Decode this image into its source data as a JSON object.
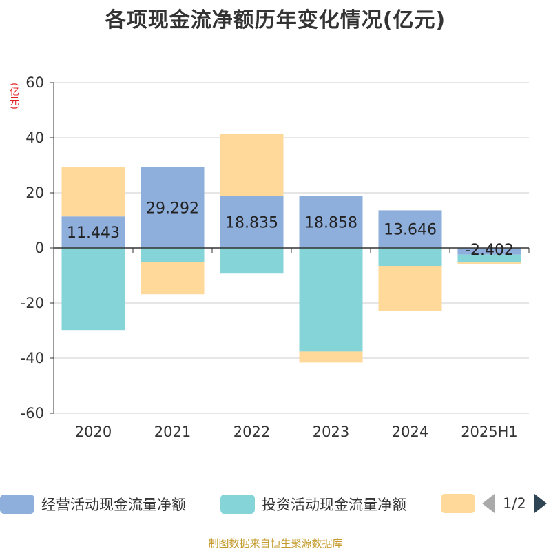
{
  "title": "各项现金流净额历年变化情况(亿元)",
  "unit_label": "(亿元)",
  "footer": "制图数据来自恒生聚源数据库",
  "legend": {
    "items": [
      {
        "label": "经营活动现金流量净额",
        "color": "#8eaedb"
      },
      {
        "label": "投资活动现金流量净额",
        "color": "#85d5d8"
      },
      {
        "label": "",
        "color": "#ffd999"
      }
    ],
    "page": "1/2"
  },
  "chart_data": {
    "type": "bar",
    "stacked": true,
    "categories": [
      "2020",
      "2021",
      "2022",
      "2023",
      "2024",
      "2025H1"
    ],
    "ylim": [
      -60,
      60
    ],
    "yticks": [
      60,
      40,
      20,
      0,
      -20,
      -40,
      -60
    ],
    "grid": true,
    "legend_position": "bottom",
    "series": [
      {
        "name": "经营活动现金流量净额",
        "color": "#8eaedb",
        "values": [
          11.443,
          29.292,
          18.835,
          18.858,
          13.646,
          -2.402
        ],
        "labels": [
          "11.443",
          "29.292",
          "18.835",
          "18.858",
          "13.646",
          "-2.402"
        ]
      },
      {
        "name": "投资活动现金流量净额",
        "color": "#85d5d8",
        "values": [
          -29.8,
          -5.2,
          -9.3,
          -37.6,
          -6.5,
          -2.9
        ]
      },
      {
        "color": "#ffd999",
        "values": [
          17.8,
          -11.6,
          22.6,
          -4.0,
          -16.3,
          -0.6
        ]
      }
    ]
  }
}
